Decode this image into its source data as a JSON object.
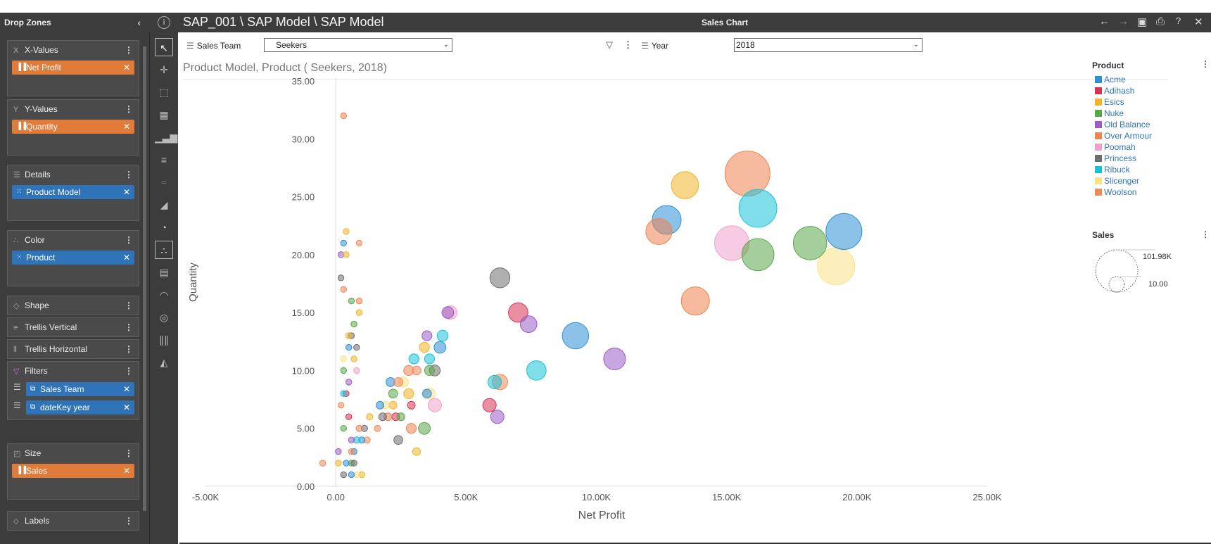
{
  "drop_zones": {
    "title": "Drop Zones",
    "collapse_icon": "chevron-left-icon",
    "x_values": {
      "title": "X-Values",
      "field": "Net Profit"
    },
    "y_values": {
      "title": "Y-Values",
      "field": "Quantity"
    },
    "details": {
      "title": "Details",
      "field": "Product Model"
    },
    "color": {
      "title": "Color",
      "field": "Product"
    },
    "shape": {
      "title": "Shape"
    },
    "trellis_vertical": {
      "title": "Trellis Vertical"
    },
    "trellis_horizontal": {
      "title": "Trellis Horizontal"
    },
    "filters": {
      "title": "Filters",
      "items": [
        "Sales Team",
        "dateKey year"
      ]
    },
    "size": {
      "title": "Size",
      "field": "Sales"
    },
    "labels": {
      "title": "Labels"
    }
  },
  "title_bar": {
    "path": "SAP_001 \\ SAP Model \\ SAP Model",
    "chart_title": "Sales Chart"
  },
  "filter_bar": {
    "sales_team_label": "Sales Team",
    "sales_team_value": "Seekers",
    "year_label": "Year",
    "year_value": "2018"
  },
  "colors": {
    "Acme": "#2e8fd6",
    "Adihash": "#d83355",
    "Esics": "#f0b429",
    "Nuke": "#5aa64a",
    "Old Balance": "#9b5cc4",
    "Over Armour": "#ef8450",
    "Poomah": "#f0a0c8",
    "Princess": "#6e6e6e",
    "Ribuck": "#15c3d8",
    "Slicenger": "#fbe285",
    "Woolson": "#ef8a5a"
  },
  "legend": {
    "product_title": "Product",
    "products": [
      "Acme",
      "Adihash",
      "Esics",
      "Nuke",
      "Old Balance",
      "Over Armour",
      "Poomah",
      "Princess",
      "Ribuck",
      "Slicenger",
      "Woolson"
    ],
    "size_title": "Sales",
    "size_max": "101.98K",
    "size_min": "10.00"
  },
  "chart_data": {
    "type": "scatter",
    "title": "Product Model, Product ( Seekers, 2018)",
    "xlabel": "Net Profit",
    "ylabel": "Quantity",
    "xlim": [
      -5000,
      25000
    ],
    "ylim": [
      0,
      35
    ],
    "x_ticks": [
      "-5.00K",
      "0.00",
      "5.00K",
      "10.00K",
      "15.00K",
      "20.00K",
      "25.00K"
    ],
    "y_ticks": [
      "0.00",
      "5.00",
      "10.00",
      "15.00",
      "20.00",
      "25.00",
      "30.00",
      "35.00"
    ],
    "size_range": [
      10,
      101980
    ],
    "points": [
      {
        "product": "Over Armour",
        "x": 15800,
        "y": 27,
        "size": 101980
      },
      {
        "product": "Ribuck",
        "x": 16200,
        "y": 24,
        "size": 72000
      },
      {
        "product": "Acme",
        "x": 19500,
        "y": 22,
        "size": 65000
      },
      {
        "product": "Slicenger",
        "x": 19200,
        "y": 19,
        "size": 70000
      },
      {
        "product": "Nuke",
        "x": 18200,
        "y": 21,
        "size": 56000
      },
      {
        "product": "Nuke",
        "x": 16200,
        "y": 20,
        "size": 52000
      },
      {
        "product": "Poomah",
        "x": 15200,
        "y": 21,
        "size": 60000
      },
      {
        "product": "Acme",
        "x": 12700,
        "y": 23,
        "size": 42000
      },
      {
        "product": "Esics",
        "x": 13400,
        "y": 26,
        "size": 37000
      },
      {
        "product": "Over Armour",
        "x": 12400,
        "y": 22,
        "size": 34000
      },
      {
        "product": "Over Armour",
        "x": 13800,
        "y": 16,
        "size": 40000
      },
      {
        "product": "Acme",
        "x": 9200,
        "y": 13,
        "size": 35000
      },
      {
        "product": "Old Balance",
        "x": 10700,
        "y": 11,
        "size": 24000
      },
      {
        "product": "Ribuck",
        "x": 7700,
        "y": 10,
        "size": 19000
      },
      {
        "product": "Old Balance",
        "x": 7400,
        "y": 14,
        "size": 14000
      },
      {
        "product": "Adihash",
        "x": 7000,
        "y": 15,
        "size": 19000
      },
      {
        "product": "Princess",
        "x": 6300,
        "y": 18,
        "size": 20000
      },
      {
        "product": "Old Balance",
        "x": 6200,
        "y": 6,
        "size": 9000
      },
      {
        "product": "Adihash",
        "x": 5900,
        "y": 7,
        "size": 9000
      },
      {
        "product": "Ribuck",
        "x": 6100,
        "y": 9,
        "size": 9000
      },
      {
        "product": "Woolson",
        "x": 6300,
        "y": 9,
        "size": 12000
      },
      {
        "product": "Poomah",
        "x": 4400,
        "y": 15,
        "size": 9000
      },
      {
        "product": "Old Balance",
        "x": 4300,
        "y": 15,
        "size": 7000
      },
      {
        "product": "Ribuck",
        "x": 4100,
        "y": 13,
        "size": 6000
      },
      {
        "product": "Acme",
        "x": 4000,
        "y": 12,
        "size": 7000
      },
      {
        "product": "Poomah",
        "x": 3800,
        "y": 7,
        "size": 9000
      },
      {
        "product": "Princess",
        "x": 3800,
        "y": 10,
        "size": 6000
      },
      {
        "product": "Nuke",
        "x": 3400,
        "y": 5,
        "size": 7000
      },
      {
        "product": "Esics",
        "x": 3100,
        "y": 3,
        "size": 3000
      },
      {
        "product": "Old Balance",
        "x": 3500,
        "y": 13,
        "size": 5000
      },
      {
        "product": "Esics",
        "x": 3400,
        "y": 12,
        "size": 5000
      },
      {
        "product": "Ribuck",
        "x": 3600,
        "y": 11,
        "size": 5000
      },
      {
        "product": "Nuke",
        "x": 3600,
        "y": 10,
        "size": 5000
      },
      {
        "product": "Slicenger",
        "x": 3600,
        "y": 8,
        "size": 6000
      },
      {
        "product": "Acme",
        "x": 3500,
        "y": 8,
        "size": 4000
      },
      {
        "product": "Ribuck",
        "x": 3000,
        "y": 11,
        "size": 5000
      },
      {
        "product": "Woolson",
        "x": 3100,
        "y": 10,
        "size": 4000
      },
      {
        "product": "Over Armour",
        "x": 2800,
        "y": 10,
        "size": 5000
      },
      {
        "product": "Esics",
        "x": 2800,
        "y": 8,
        "size": 5000
      },
      {
        "product": "Over Armour",
        "x": 2900,
        "y": 5,
        "size": 5000
      },
      {
        "product": "Adihash",
        "x": 2900,
        "y": 7,
        "size": 3000
      },
      {
        "product": "Princess",
        "x": 2400,
        "y": 4,
        "size": 4000
      },
      {
        "product": "Slicenger",
        "x": 2600,
        "y": 9,
        "size": 5000
      },
      {
        "product": "Nuke",
        "x": 2200,
        "y": 8,
        "size": 4000
      },
      {
        "product": "Acme",
        "x": 2100,
        "y": 9,
        "size": 4000
      },
      {
        "product": "Esics",
        "x": 2200,
        "y": 7,
        "size": 3000
      },
      {
        "product": "Woolson",
        "x": 2400,
        "y": 9,
        "size": 4000
      },
      {
        "product": "Adihash",
        "x": 2300,
        "y": 6,
        "size": 3000
      },
      {
        "product": "Over Armour",
        "x": 2000,
        "y": 6,
        "size": 3000
      },
      {
        "product": "Nuke",
        "x": 2500,
        "y": 6,
        "size": 3000
      },
      {
        "product": "Slicenger",
        "x": 1900,
        "y": 7,
        "size": 3000
      },
      {
        "product": "Princess",
        "x": 1800,
        "y": 6,
        "size": 3000
      },
      {
        "product": "Acme",
        "x": 1700,
        "y": 7,
        "size": 3000
      },
      {
        "product": "Woolson",
        "x": 1600,
        "y": 5,
        "size": 2000
      },
      {
        "product": "Esics",
        "x": 1300,
        "y": 6,
        "size": 2000
      },
      {
        "product": "Princess",
        "x": 1100,
        "y": 5,
        "size": 2000
      },
      {
        "product": "Woolson",
        "x": 1200,
        "y": 4,
        "size": 2000
      },
      {
        "product": "Acme",
        "x": 1000,
        "y": 4,
        "size": 2000
      },
      {
        "product": "Ribuck",
        "x": 800,
        "y": 4,
        "size": 2000
      },
      {
        "product": "Over Armour",
        "x": 900,
        "y": 5,
        "size": 2000
      },
      {
        "product": "Esics",
        "x": 1000,
        "y": 1,
        "size": 1000
      },
      {
        "product": "Acme",
        "x": 700,
        "y": 3,
        "size": 1500
      },
      {
        "product": "Woolson",
        "x": 600,
        "y": 3,
        "size": 1500
      },
      {
        "product": "Nuke",
        "x": 600,
        "y": 2,
        "size": 1500
      },
      {
        "product": "Princess",
        "x": 700,
        "y": 2,
        "size": 1500
      },
      {
        "product": "Slicenger",
        "x": 800,
        "y": 1,
        "size": 1000
      },
      {
        "product": "Acme",
        "x": 600,
        "y": 1,
        "size": 1000
      },
      {
        "product": "Adihash",
        "x": 500,
        "y": 6,
        "size": 1200
      },
      {
        "product": "Old Balance",
        "x": 600,
        "y": 4,
        "size": 1200
      },
      {
        "product": "Over Armour",
        "x": 900,
        "y": 16,
        "size": 800
      },
      {
        "product": "Esics",
        "x": 700,
        "y": 11,
        "size": 800
      },
      {
        "product": "Nuke",
        "x": 600,
        "y": 16,
        "size": 800
      },
      {
        "product": "Princess",
        "x": 800,
        "y": 12,
        "size": 800
      },
      {
        "product": "Poomah",
        "x": 800,
        "y": 10,
        "size": 800
      },
      {
        "product": "Acme",
        "x": 500,
        "y": 12,
        "size": 900
      },
      {
        "product": "Nuke",
        "x": 700,
        "y": 14,
        "size": 800
      },
      {
        "product": "Princess",
        "x": 600,
        "y": 13,
        "size": 800
      },
      {
        "product": "Esics",
        "x": 900,
        "y": 15,
        "size": 800
      },
      {
        "product": "Old Balance",
        "x": 500,
        "y": 9,
        "size": 800
      },
      {
        "product": "Adihash",
        "x": 400,
        "y": 8,
        "size": 800
      },
      {
        "product": "Esics",
        "x": 500,
        "y": 13,
        "size": 600
      },
      {
        "product": "Nuke",
        "x": 300,
        "y": 10,
        "size": 500
      },
      {
        "product": "Woolson",
        "x": 900,
        "y": 21,
        "size": 800
      },
      {
        "product": "Acme",
        "x": 300,
        "y": 21,
        "size": 500
      },
      {
        "product": "Esics",
        "x": 400,
        "y": 22,
        "size": 500
      },
      {
        "product": "Old Balance",
        "x": 200,
        "y": 20,
        "size": 500
      },
      {
        "product": "Esics",
        "x": 400,
        "y": 20,
        "size": 500
      },
      {
        "product": "Princess",
        "x": 200,
        "y": 18,
        "size": 500
      },
      {
        "product": "Over Armour",
        "x": 300,
        "y": 17,
        "size": 500
      },
      {
        "product": "Slicenger",
        "x": 300,
        "y": 11,
        "size": 600
      },
      {
        "product": "Ribuck",
        "x": 300,
        "y": 8,
        "size": 600
      },
      {
        "product": "Woolson",
        "x": 200,
        "y": 7,
        "size": 600
      },
      {
        "product": "Nuke",
        "x": 300,
        "y": 5,
        "size": 600
      },
      {
        "product": "Old Balance",
        "x": 100,
        "y": 3,
        "size": 600
      },
      {
        "product": "Princess",
        "x": 300,
        "y": 1,
        "size": 600
      },
      {
        "product": "Esics",
        "x": 100,
        "y": 2,
        "size": 600
      },
      {
        "product": "Acme",
        "x": 400,
        "y": 2,
        "size": 600
      },
      {
        "product": "Woolson",
        "x": -500,
        "y": 2,
        "size": 600
      },
      {
        "product": "Over Armour",
        "x": 300,
        "y": 32,
        "size": 500
      }
    ]
  }
}
